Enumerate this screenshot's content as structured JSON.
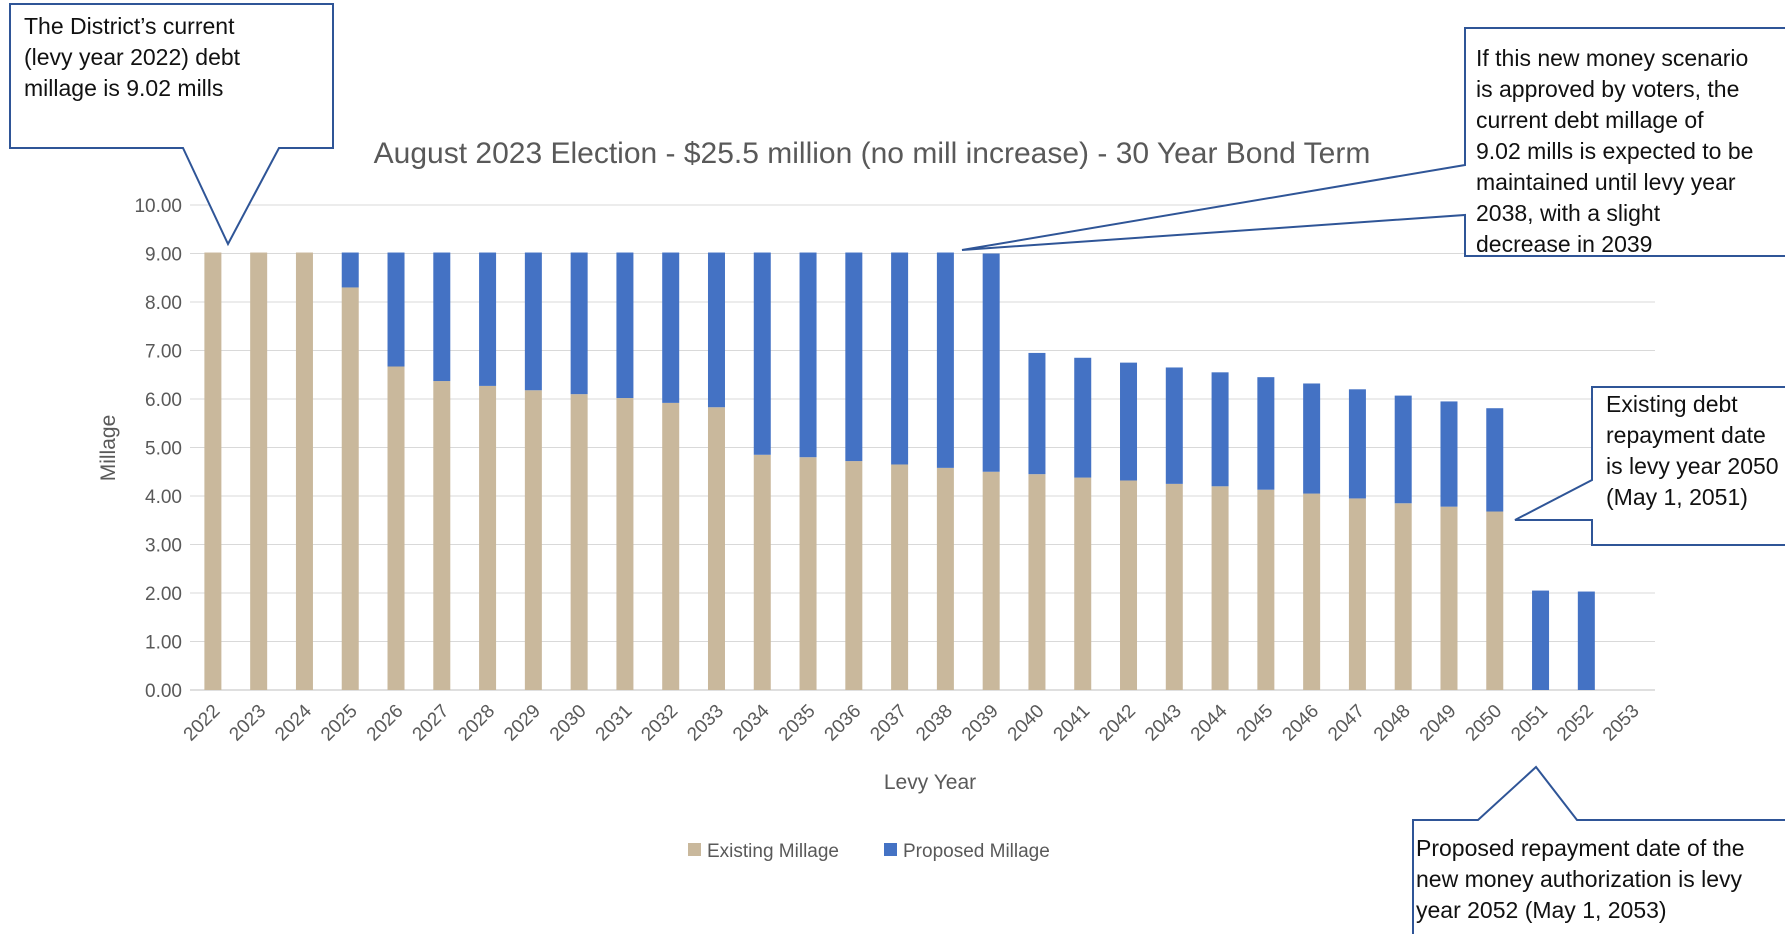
{
  "chart_data": {
    "type": "bar",
    "stacked": true,
    "title": "August 2023 Election - $25.5 million (no mill increase) - 30 Year Bond Term",
    "xlabel": "Levy Year",
    "ylabel": "Millage",
    "ylim": [
      0,
      10
    ],
    "yticks": [
      "0.00",
      "1.00",
      "2.00",
      "3.00",
      "4.00",
      "5.00",
      "6.00",
      "7.00",
      "8.00",
      "9.00",
      "10.00"
    ],
    "grid": true,
    "legend_position": "bottom",
    "categories": [
      "2022",
      "2023",
      "2024",
      "2025",
      "2026",
      "2027",
      "2028",
      "2029",
      "2030",
      "2031",
      "2032",
      "2033",
      "2034",
      "2035",
      "2036",
      "2037",
      "2038",
      "2039",
      "2040",
      "2041",
      "2042",
      "2043",
      "2044",
      "2045",
      "2046",
      "2047",
      "2048",
      "2049",
      "2050",
      "2051",
      "2052",
      "2053"
    ],
    "series": [
      {
        "name": "Existing Millage",
        "color": "#c9b89c",
        "values": [
          9.02,
          9.02,
          9.02,
          8.3,
          6.67,
          6.37,
          6.27,
          6.18,
          6.1,
          6.02,
          5.92,
          5.83,
          4.85,
          4.8,
          4.72,
          4.65,
          4.58,
          4.5,
          4.45,
          4.38,
          4.32,
          4.25,
          4.2,
          4.13,
          4.05,
          3.95,
          3.85,
          3.78,
          3.68,
          0,
          0,
          0
        ]
      },
      {
        "name": "Proposed Millage",
        "color": "#4472c4",
        "values": [
          0,
          0,
          0,
          0.72,
          2.35,
          2.65,
          2.75,
          2.84,
          2.92,
          3.0,
          3.1,
          3.19,
          4.17,
          4.22,
          4.3,
          4.37,
          4.44,
          4.5,
          2.5,
          2.47,
          2.43,
          2.4,
          2.35,
          2.32,
          2.27,
          2.25,
          2.22,
          2.17,
          2.13,
          2.05,
          2.03,
          0
        ]
      }
    ],
    "annotations": [
      {
        "id": "current",
        "text": "The District’s current\n(levy year 2022) debt\nmillage is 9.02 mills"
      },
      {
        "id": "maintained",
        "text": "If this new money scenario\nis approved by voters, the\ncurrent debt millage of\n9.02 mills is expected to be\nmaintained until levy year\n2038, with a slight\ndecrease in 2039"
      },
      {
        "id": "existing",
        "text": "Existing debt\nrepayment date\nis levy year 2050\n(May 1, 2051)"
      },
      {
        "id": "proposed",
        "text": "Proposed repayment date of the\nnew money authorization is levy\nyear 2052 (May 1, 2053)"
      }
    ]
  }
}
